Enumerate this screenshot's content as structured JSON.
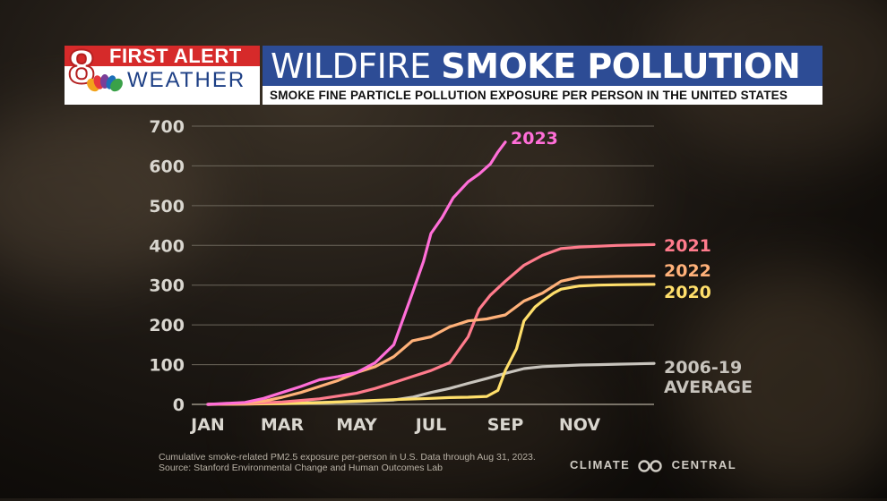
{
  "header": {
    "logo_number": "8",
    "logo_top": "FIRST ALERT",
    "logo_bottom": "WEATHER",
    "title_regular": "WILDFIRE ",
    "title_bold": "SMOKE POLLUTION",
    "subtitle": "SMOKE FINE PARTICLE POLLUTION EXPOSURE PER PERSON IN THE UNITED STATES"
  },
  "footnote": {
    "line1": "Cumulative smoke-related PM2.5 exposure per-person in U.S. Data through Aug 31, 2023.",
    "line2": "Source: Stanford Environmental Change and Human Outcomes Lab"
  },
  "credit": {
    "left": "CLIMATE",
    "right": "CENTRAL",
    "icon": "infinity-icon"
  },
  "colors": {
    "title_bar": "#2d4c95",
    "logo_red": "#d62a2a",
    "grid": "#7a7468",
    "text": "#d9d6cf"
  },
  "chart_data": {
    "type": "line",
    "title": "WILDFIRE SMOKE POLLUTION",
    "subtitle": "SMOKE FINE PARTICLE POLLUTION EXPOSURE PER PERSON IN THE UNITED STATES",
    "xlabel": "",
    "ylabel": "",
    "x_ticks": [
      "JAN",
      "MAR",
      "MAY",
      "JUL",
      "SEP",
      "NOV"
    ],
    "xlim": [
      1,
      13
    ],
    "ylim": [
      0,
      700
    ],
    "y_ticks": [
      0,
      100,
      200,
      300,
      400,
      500,
      600,
      700
    ],
    "grid": true,
    "legend": "inline-right",
    "series": [
      {
        "name": "2006-19 AVERAGE",
        "label_lines": [
          "2006-19",
          "AVERAGE"
        ],
        "color": "#c8c4bd",
        "x": [
          1.0,
          2.0,
          3.0,
          4.0,
          5.0,
          6.0,
          6.5,
          7.0,
          7.5,
          8.0,
          8.5,
          9.0,
          9.5,
          10.0,
          10.5,
          11.0,
          11.5,
          12.0,
          12.5,
          13.0
        ],
        "y": [
          0,
          1,
          3,
          5,
          7,
          11,
          18,
          30,
          40,
          53,
          65,
          78,
          90,
          95,
          97,
          99,
          100,
          101,
          102,
          103
        ]
      },
      {
        "name": "2020",
        "color": "#ffdf6b",
        "x": [
          1.0,
          2.0,
          3.0,
          4.0,
          5.0,
          6.0,
          7.0,
          7.5,
          8.0,
          8.5,
          8.8,
          9.0,
          9.3,
          9.5,
          9.8,
          10.0,
          10.3,
          10.5,
          11.0,
          11.5,
          12.0,
          13.0
        ],
        "y": [
          0,
          1,
          2,
          4,
          8,
          12,
          15,
          17,
          18,
          20,
          35,
          85,
          140,
          210,
          245,
          260,
          280,
          290,
          298,
          300,
          301,
          302
        ]
      },
      {
        "name": "2021",
        "color": "#ff7b8c",
        "x": [
          1.0,
          2.0,
          3.0,
          4.0,
          5.0,
          5.5,
          6.0,
          6.5,
          7.0,
          7.5,
          8.0,
          8.3,
          8.6,
          9.0,
          9.5,
          10.0,
          10.5,
          11.0,
          12.0,
          13.0
        ],
        "y": [
          0,
          2,
          6,
          14,
          28,
          40,
          55,
          70,
          85,
          105,
          170,
          240,
          275,
          310,
          350,
          375,
          392,
          396,
          400,
          402
        ]
      },
      {
        "name": "2022",
        "color": "#ffb179",
        "x": [
          1.0,
          2.0,
          2.5,
          3.0,
          3.5,
          4.0,
          4.5,
          5.0,
          5.5,
          6.0,
          6.5,
          7.0,
          7.5,
          8.0,
          8.5,
          9.0,
          9.5,
          10.0,
          10.5,
          11.0,
          12.0,
          13.0
        ],
        "y": [
          0,
          3,
          8,
          18,
          30,
          45,
          60,
          80,
          95,
          120,
          160,
          170,
          195,
          210,
          215,
          225,
          260,
          280,
          310,
          320,
          322,
          323
        ]
      },
      {
        "name": "2023",
        "color": "#ff6ed8",
        "x": [
          1.0,
          2.0,
          2.5,
          3.0,
          3.5,
          4.0,
          4.5,
          5.0,
          5.5,
          6.0,
          6.5,
          6.8,
          7.0,
          7.3,
          7.6,
          8.0,
          8.3,
          8.6,
          8.8,
          9.0
        ],
        "y": [
          0,
          5,
          15,
          30,
          45,
          62,
          70,
          80,
          105,
          150,
          280,
          360,
          430,
          470,
          520,
          560,
          580,
          605,
          635,
          660
        ]
      }
    ]
  }
}
